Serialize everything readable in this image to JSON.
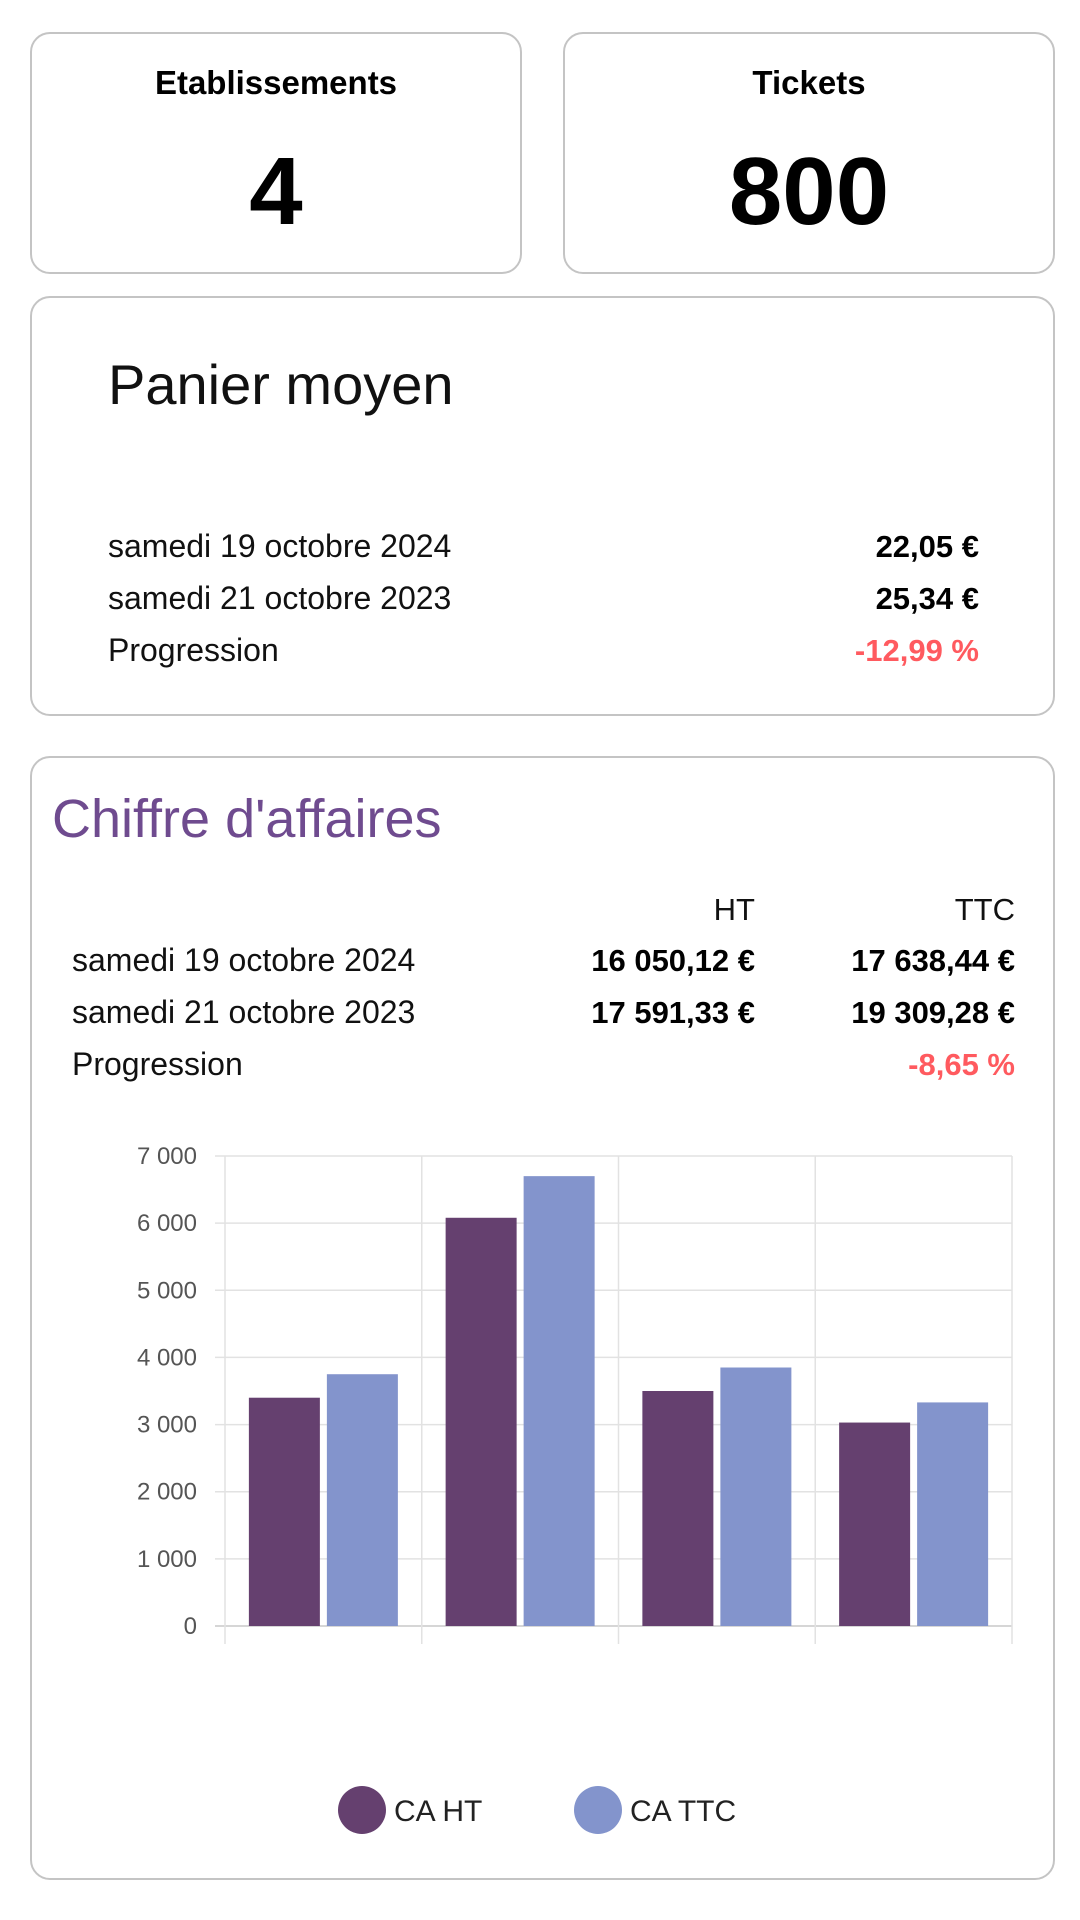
{
  "stats": {
    "etablissements": {
      "label": "Etablissements",
      "value": "4"
    },
    "tickets": {
      "label": "Tickets",
      "value": "800"
    }
  },
  "panier": {
    "title": "Panier moyen",
    "rows": [
      {
        "label": "samedi 19 octobre 2024",
        "value": "22,05 €"
      },
      {
        "label": "samedi 21 octobre 2023",
        "value": "25,34 €"
      },
      {
        "label": "Progression",
        "value": "-12,99 %"
      }
    ]
  },
  "ca": {
    "title": "Chiffre d'affaires",
    "col_ht": "HT",
    "col_ttc": "TTC",
    "rows": [
      {
        "label": "samedi 19 octobre 2024",
        "ht": "16 050,12 €",
        "ttc": "17 638,44 €"
      },
      {
        "label": "samedi 21 octobre 2023",
        "ht": "17 591,33 €",
        "ttc": "19 309,28 €"
      },
      {
        "label": "Progression",
        "ht": "",
        "ttc": "-8,65 %"
      }
    ]
  },
  "colors": {
    "ca_ht": "#65406f",
    "ca_ttc": "#8394cc",
    "negative": "#ff5a5f",
    "title_purple": "#6f4b8f"
  },
  "chart_data": {
    "type": "bar",
    "categories": [
      "",
      "",
      "",
      ""
    ],
    "series": [
      {
        "name": "CA HT",
        "values": [
          3400,
          6080,
          3500,
          3030
        ]
      },
      {
        "name": "CA TTC",
        "values": [
          3750,
          6700,
          3850,
          3330
        ]
      }
    ],
    "ylim": [
      0,
      7000
    ],
    "yticks": [
      "0",
      "1 000",
      "2 000",
      "3 000",
      "4 000",
      "5 000",
      "6 000",
      "7 000"
    ],
    "grid": true,
    "legend": "bottom"
  }
}
